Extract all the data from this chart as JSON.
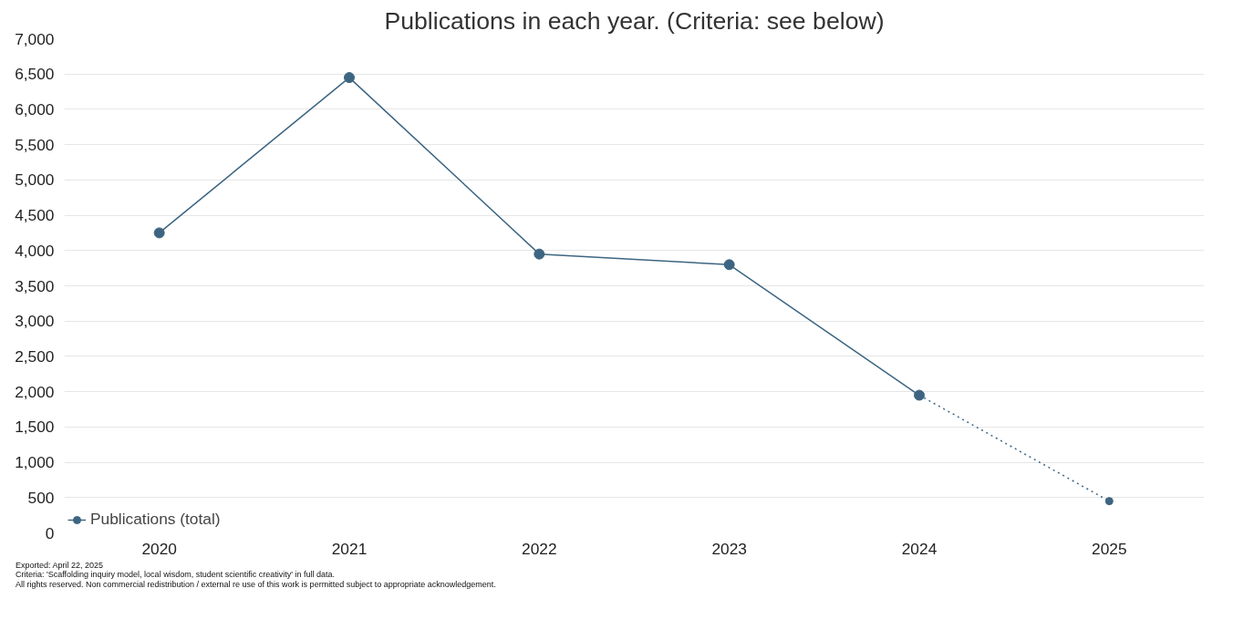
{
  "chart_data": {
    "type": "line",
    "title": "Publications in each year. (Criteria: see below)",
    "categories": [
      "2020",
      "2021",
      "2022",
      "2023",
      "2024",
      "2025"
    ],
    "series": [
      {
        "name": "Publications (total)",
        "color": "#3d6582",
        "line_style": "solid",
        "values": [
          4250,
          6450,
          3950,
          3800,
          1950,
          null
        ]
      },
      {
        "color": "#3d6582",
        "line_style": "dotted",
        "values": [
          null,
          null,
          null,
          null,
          1950,
          450
        ]
      }
    ],
    "ylim": [
      0,
      7000
    ],
    "yticks": [
      {
        "value": 0,
        "label": "0"
      },
      {
        "value": 500,
        "label": "500"
      },
      {
        "value": 1000,
        "label": "1,000"
      },
      {
        "value": 1500,
        "label": "1,500"
      },
      {
        "value": 2000,
        "label": "2,000"
      },
      {
        "value": 2500,
        "label": "2,500"
      },
      {
        "value": 3000,
        "label": "3,000"
      },
      {
        "value": 3500,
        "label": "3,500"
      },
      {
        "value": 4000,
        "label": "4,000"
      },
      {
        "value": 4500,
        "label": "4,500"
      },
      {
        "value": 5000,
        "label": "5,000"
      },
      {
        "value": 5500,
        "label": "5,500"
      },
      {
        "value": 6000,
        "label": "6,000"
      },
      {
        "value": 6500,
        "label": "6,500"
      },
      {
        "value": 7000,
        "label": "7,000"
      }
    ],
    "grid": "y",
    "legend": "bottom left",
    "marker": "circle",
    "annotations": [
      "Exported: April 22, 2025",
      "Criteria: 'Scaffolding inquiry model, local wisdom, student scientific creativity' in full data.",
      "All rights reserved. Non commercial redistribution / external re use of this work is permitted subject to appropriate acknowledgement."
    ]
  }
}
